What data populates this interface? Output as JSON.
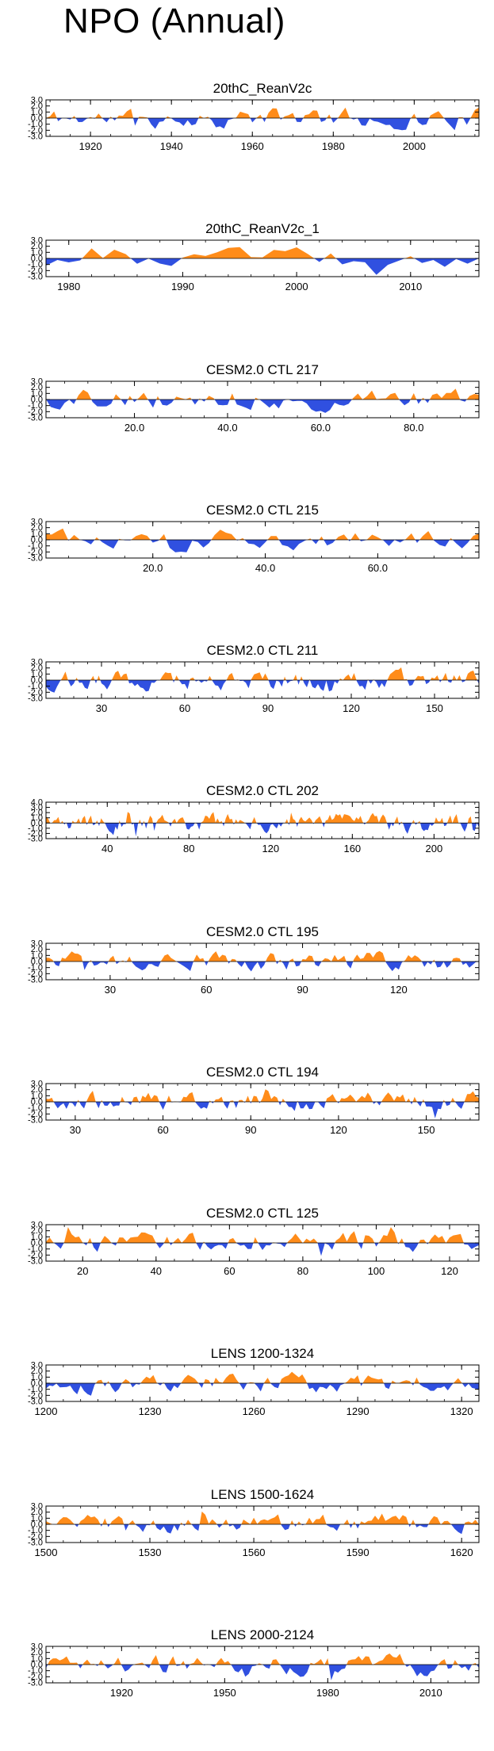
{
  "page_title": "NPO (Annual)",
  "colors": {
    "positive": "#ff8c1a",
    "negative": "#3050e0",
    "frame": "#000000"
  },
  "chart_data": [
    {
      "type": "area",
      "title": "20thC_ReanV2c",
      "xlim": [
        1909,
        2016
      ],
      "ylim": [
        -3.0,
        3.0
      ],
      "xticks": [
        1920,
        1940,
        1960,
        1980,
        2000
      ],
      "xtick_labels": [
        "1920",
        "1940",
        "1960",
        "1980",
        "2000"
      ],
      "yticks": [
        3.0,
        2.0,
        1.0,
        0.0,
        -1.0,
        -2.0,
        -3.0
      ],
      "ytick_labels": [
        "3.0",
        "2.0",
        "1.0",
        "0.0",
        "-1.0",
        "-2.0",
        "-3.0"
      ],
      "seed": 11,
      "amp": 1.1
    },
    {
      "type": "area",
      "title": "20thC_ReanV2c_1",
      "xlim": [
        1978,
        2016
      ],
      "ylim": [
        -3.0,
        3.0
      ],
      "xticks": [
        1980,
        1990,
        2000,
        2010
      ],
      "xtick_labels": [
        "1980",
        "1990",
        "2000",
        "2010"
      ],
      "yticks": [
        3.0,
        2.0,
        1.0,
        0.0,
        -1.0,
        -2.0,
        -3.0
      ],
      "ytick_labels": [
        "3.0",
        "2.0",
        "1.0",
        "0.0",
        "-1.0",
        "-2.0",
        "-3.0"
      ],
      "seed": 23,
      "amp": 1.2
    },
    {
      "type": "area",
      "title": "CESM2.0 CTL 217",
      "xlim": [
        1,
        94
      ],
      "ylim": [
        -3.0,
        3.0
      ],
      "xticks": [
        20,
        40,
        60,
        80
      ],
      "xtick_labels": [
        "20.0",
        "40.0",
        "60.0",
        "80.0"
      ],
      "yticks": [
        3.0,
        2.0,
        1.0,
        0.0,
        -1.0,
        -2.0,
        -3.0
      ],
      "ytick_labels": [
        "3.0",
        "2.0",
        "1.0",
        "0.0",
        "-1.0",
        "-2.0",
        "-3.0"
      ],
      "seed": 37,
      "amp": 1.1
    },
    {
      "type": "area",
      "title": "CESM2.0 CTL 215",
      "xlim": [
        1,
        78
      ],
      "ylim": [
        -3.0,
        3.0
      ],
      "xticks": [
        20,
        40,
        60
      ],
      "xtick_labels": [
        "20.0",
        "40.0",
        "60.0"
      ],
      "yticks": [
        3.0,
        2.0,
        1.0,
        0.0,
        -1.0,
        -2.0,
        -3.0
      ],
      "ytick_labels": [
        "3.0",
        "2.0",
        "1.0",
        "0.0",
        "-1.0",
        "-2.0",
        "-3.0"
      ],
      "seed": 41,
      "amp": 1.1
    },
    {
      "type": "area",
      "title": "CESM2.0 CTL 211",
      "xlim": [
        10,
        166
      ],
      "ylim": [
        -3.0,
        3.0
      ],
      "xticks": [
        30,
        60,
        90,
        120,
        150
      ],
      "xtick_labels": [
        "30",
        "60",
        "90",
        "120",
        "150"
      ],
      "yticks": [
        3.0,
        2.0,
        1.0,
        0.0,
        -1.0,
        -2.0,
        -3.0
      ],
      "ytick_labels": [
        "3.0",
        "2.0",
        "1.0",
        "0.0",
        "-1.0",
        "-2.0",
        "-3.0"
      ],
      "seed": 53,
      "amp": 1.0
    },
    {
      "type": "area",
      "title": "CESM2.0 CTL 202",
      "xlim": [
        10,
        222
      ],
      "ylim": [
        -3.0,
        4.0
      ],
      "xticks": [
        40,
        80,
        120,
        160,
        200
      ],
      "xtick_labels": [
        "40",
        "80",
        "120",
        "160",
        "200"
      ],
      "yticks": [
        4.0,
        3.0,
        2.0,
        1.0,
        0.0,
        -1.0,
        -2.0,
        -3.0
      ],
      "ytick_labels": [
        "4.0",
        "3.0",
        "2.0",
        "1.0",
        "0.0",
        "-1.0",
        "-2.0",
        "-3.0"
      ],
      "seed": 67,
      "amp": 1.1
    },
    {
      "type": "area",
      "title": "CESM2.0 CTL 195",
      "xlim": [
        10,
        145
      ],
      "ylim": [
        -3.0,
        3.0
      ],
      "xticks": [
        30,
        60,
        90,
        120
      ],
      "xtick_labels": [
        "30",
        "60",
        "90",
        "120"
      ],
      "yticks": [
        3.0,
        2.0,
        1.0,
        0.0,
        -1.0,
        -2.0,
        -3.0
      ],
      "ytick_labels": [
        "3.0",
        "2.0",
        "1.0",
        "0.0",
        "-1.0",
        "-2.0",
        "-3.0"
      ],
      "seed": 71,
      "amp": 1.0
    },
    {
      "type": "area",
      "title": "CESM2.0 CTL 194",
      "xlim": [
        20,
        168
      ],
      "ylim": [
        -3.0,
        3.0
      ],
      "xticks": [
        30,
        60,
        90,
        120,
        150
      ],
      "xtick_labels": [
        "30",
        "60",
        "90",
        "120",
        "150"
      ],
      "yticks": [
        3.0,
        2.0,
        1.0,
        0.0,
        -1.0,
        -2.0,
        -3.0
      ],
      "ytick_labels": [
        "3.0",
        "2.0",
        "1.0",
        "0.0",
        "-1.0",
        "-2.0",
        "-3.0"
      ],
      "seed": 83,
      "amp": 1.0
    },
    {
      "type": "area",
      "title": "CESM2.0 CTL 125",
      "xlim": [
        10,
        128
      ],
      "ylim": [
        -3.0,
        3.0
      ],
      "xticks": [
        20,
        40,
        60,
        80,
        100,
        120
      ],
      "xtick_labels": [
        "20",
        "40",
        "60",
        "80",
        "100",
        "120"
      ],
      "yticks": [
        3.0,
        2.0,
        1.0,
        0.0,
        -1.0,
        -2.0,
        -3.0
      ],
      "ytick_labels": [
        "3.0",
        "2.0",
        "1.0",
        "0.0",
        "-1.0",
        "-2.0",
        "-3.0"
      ],
      "seed": 97,
      "amp": 1.0
    },
    {
      "type": "area",
      "title": "LENS 1200-1324",
      "xlim": [
        1200,
        1325
      ],
      "ylim": [
        -3.0,
        3.0
      ],
      "xticks": [
        1200,
        1230,
        1260,
        1290,
        1320
      ],
      "xtick_labels": [
        "1200",
        "1230",
        "1260",
        "1290",
        "1320"
      ],
      "yticks": [
        3.0,
        2.0,
        1.0,
        0.0,
        -1.0,
        -2.0,
        -3.0
      ],
      "ytick_labels": [
        "3.0",
        "2.0",
        "1.0",
        "0.0",
        "-1.0",
        "-2.0",
        "-3.0"
      ],
      "seed": 101,
      "amp": 1.0
    },
    {
      "type": "area",
      "title": "LENS 1500-1624",
      "xlim": [
        1500,
        1625
      ],
      "ylim": [
        -3.0,
        3.0
      ],
      "xticks": [
        1500,
        1530,
        1560,
        1590,
        1620
      ],
      "xtick_labels": [
        "1500",
        "1530",
        "1560",
        "1590",
        "1620"
      ],
      "yticks": [
        3.0,
        2.0,
        1.0,
        0.0,
        -1.0,
        -2.0,
        -3.0
      ],
      "ytick_labels": [
        "3.0",
        "2.0",
        "1.0",
        "0.0",
        "-1.0",
        "-2.0",
        "-3.0"
      ],
      "seed": 113,
      "amp": 1.0
    },
    {
      "type": "area",
      "title": "LENS 2000-2124",
      "xlim": [
        1898,
        2024
      ],
      "ylim": [
        -3.0,
        3.0
      ],
      "xticks": [
        1920,
        1950,
        1980,
        2010
      ],
      "xtick_labels": [
        "1920",
        "1950",
        "1980",
        "2010"
      ],
      "yticks": [
        3.0,
        2.0,
        1.0,
        0.0,
        -1.0,
        -2.0,
        -3.0
      ],
      "ytick_labels": [
        "3.0",
        "2.0",
        "1.0",
        "0.0",
        "-1.0",
        "-2.0",
        "-3.0"
      ],
      "seed": 127,
      "amp": 1.0
    }
  ]
}
